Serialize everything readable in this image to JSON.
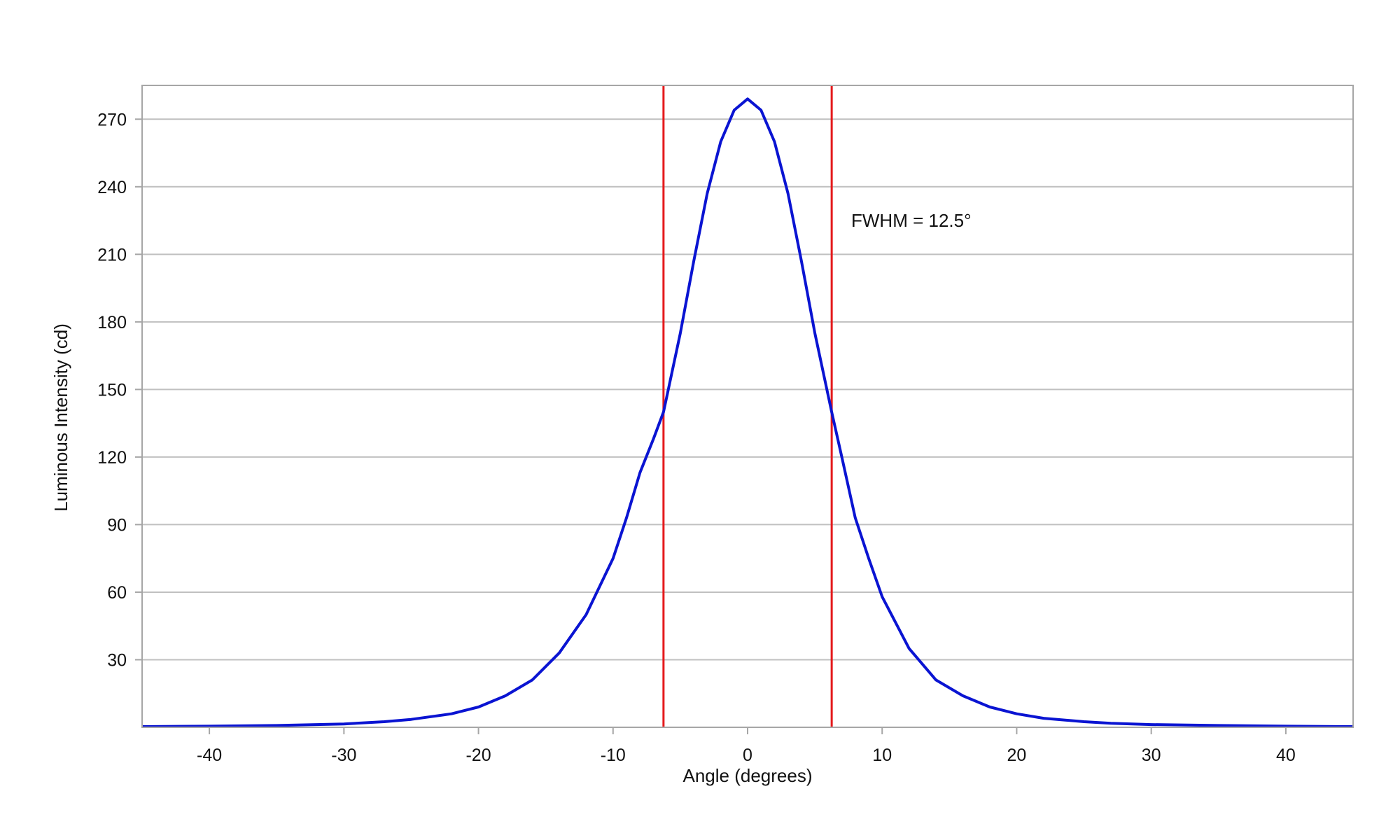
{
  "chart_data": {
    "type": "line",
    "title": "",
    "xlabel": "Angle (degrees)",
    "ylabel": "Luminous Intensity (cd)",
    "xlim": [
      -45,
      45
    ],
    "ylim": [
      0,
      285
    ],
    "xticks": [
      -40,
      -30,
      -20,
      -10,
      0,
      10,
      20,
      30,
      40
    ],
    "yticks": [
      30,
      60,
      90,
      120,
      150,
      180,
      210,
      240,
      270
    ],
    "grid": "horizontal",
    "legend": "none",
    "series": [
      {
        "color": "#0a14d2",
        "x": [
          -45,
          -40,
          -35,
          -30,
          -27,
          -25,
          -22,
          -20,
          -18,
          -16,
          -14,
          -12,
          -10,
          -9,
          -8,
          -7,
          -6.25,
          -5,
          -4,
          -3,
          -2,
          -1,
          0,
          1,
          2,
          3,
          4,
          5,
          6.25,
          7,
          8,
          9,
          10,
          12,
          14,
          16,
          18,
          20,
          22,
          25,
          27,
          30,
          35,
          40,
          45
        ],
        "y": [
          0.3,
          0.5,
          0.8,
          1.5,
          2.5,
          3.5,
          6,
          9,
          14,
          21,
          33,
          50,
          75,
          93,
          113,
          128,
          140,
          175,
          207,
          237,
          260,
          274,
          279,
          274,
          260,
          237,
          207,
          175,
          140,
          120,
          93,
          75,
          58,
          35,
          21,
          14,
          9,
          6,
          4,
          2.5,
          1.8,
          1.2,
          0.8,
          0.5,
          0.3
        ]
      }
    ],
    "vlines": [
      {
        "x": -6.25,
        "color": "#e41a1c"
      },
      {
        "x": 6.25,
        "color": "#e41a1c"
      }
    ],
    "annotation": {
      "text": "FWHM = 12.5°",
      "x": 7.7,
      "y": 225
    }
  }
}
